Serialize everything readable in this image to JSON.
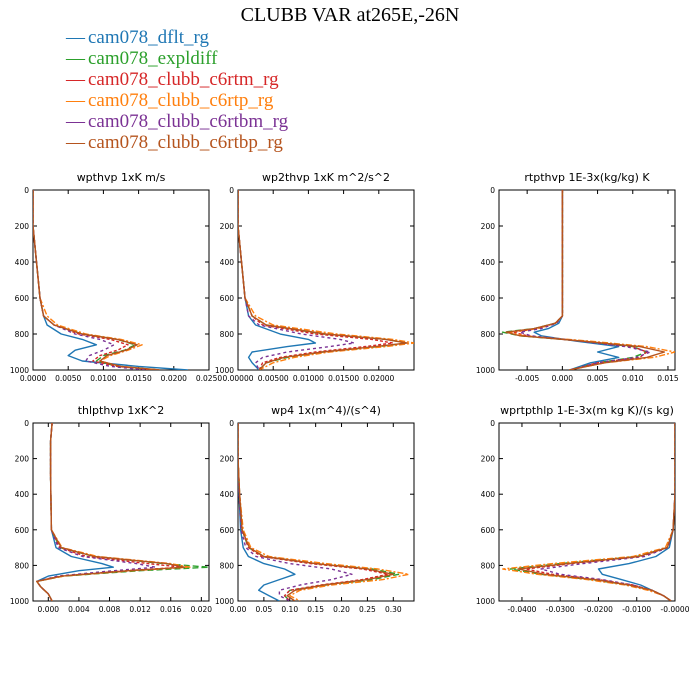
{
  "title": "CLUBB VAR at265E,-26N",
  "legend": [
    {
      "label": "cam078_dflt_rg",
      "color": "#1f77b4"
    },
    {
      "label": "cam078_expldiff",
      "color": "#2ca02c"
    },
    {
      "label": "cam078_clubb_c6rtm_rg",
      "color": "#d62728"
    },
    {
      "label": "cam078_clubb_c6rtp_rg",
      "color": "#ff7f0e"
    },
    {
      "label": "cam078_clubb_c6rtbm_rg",
      "color": "#7b3294"
    },
    {
      "label": "cam078_clubb_c6rtbp_rg",
      "color": "#b5541e"
    }
  ],
  "chart_data": [
    {
      "type": "line",
      "title": "wpthvp  1xK m/s",
      "ylim": [
        1000,
        0
      ],
      "yticks": [
        "0",
        "200",
        "400",
        "600",
        "800",
        "1000"
      ],
      "xlim": [
        0,
        0.025
      ],
      "xticks": [
        "0.0000",
        "0.0050",
        "0.0100",
        "0.0150",
        "0.0200",
        "0.0250"
      ],
      "y": [
        0,
        200,
        400,
        600,
        700,
        750,
        800,
        830,
        860,
        890,
        920,
        950,
        980,
        1000
      ],
      "series": [
        {
          "values": [
            0,
            0,
            0.0005,
            0.001,
            0.0015,
            0.002,
            0.004,
            0.007,
            0.009,
            0.006,
            0.005,
            0.007,
            0.015,
            0.022
          ]
        },
        {
          "values": [
            0,
            0,
            0.0005,
            0.001,
            0.0015,
            0.003,
            0.007,
            0.012,
            0.0145,
            0.013,
            0.01,
            0.009,
            0.012,
            0.018
          ]
        },
        {
          "values": [
            0,
            0,
            0.0005,
            0.001,
            0.0015,
            0.003,
            0.0065,
            0.011,
            0.0135,
            0.012,
            0.0095,
            0.0085,
            0.012,
            0.017
          ]
        },
        {
          "values": [
            0,
            0,
            0.0005,
            0.001,
            0.002,
            0.0035,
            0.0075,
            0.0125,
            0.0155,
            0.0135,
            0.011,
            0.0095,
            0.0125,
            0.018
          ]
        },
        {
          "values": [
            0,
            0,
            0.0005,
            0.001,
            0.0015,
            0.003,
            0.006,
            0.0095,
            0.0115,
            0.01,
            0.008,
            0.0075,
            0.011,
            0.016
          ]
        },
        {
          "values": [
            0,
            0,
            0.0005,
            0.001,
            0.0015,
            0.003,
            0.007,
            0.012,
            0.0148,
            0.0132,
            0.0105,
            0.0095,
            0.0125,
            0.018
          ]
        }
      ]
    },
    {
      "type": "line",
      "title": "wp2thvp  1xK m^2/s^2",
      "ylim": [
        1000,
        0
      ],
      "yticks": [
        "0",
        "200",
        "400",
        "600",
        "800",
        "1000"
      ],
      "xlim": [
        0,
        0.025
      ],
      "xticks": [
        "0.00000",
        "0.00500",
        "0.01000",
        "0.01500",
        "0.02000"
      ],
      "y": [
        0,
        200,
        400,
        600,
        700,
        750,
        800,
        830,
        850,
        870,
        900,
        930,
        960,
        1000
      ],
      "series": [
        {
          "values": [
            0,
            0,
            0.0005,
            0.001,
            0.0015,
            0.0025,
            0.006,
            0.01,
            0.011,
            0.007,
            0.002,
            0.0015,
            0.002,
            0.003
          ]
        },
        {
          "values": [
            0,
            0,
            0.0005,
            0.001,
            0.002,
            0.004,
            0.012,
            0.021,
            0.024,
            0.02,
            0.012,
            0.007,
            0.004,
            0.003
          ]
        },
        {
          "values": [
            0,
            0,
            0.0005,
            0.001,
            0.002,
            0.0035,
            0.011,
            0.019,
            0.022,
            0.018,
            0.011,
            0.006,
            0.0035,
            0.003
          ]
        },
        {
          "values": [
            0,
            0,
            0.0005,
            0.001,
            0.0025,
            0.005,
            0.014,
            0.022,
            0.025,
            0.021,
            0.013,
            0.008,
            0.005,
            0.003
          ]
        },
        {
          "values": [
            0,
            0,
            0.0005,
            0.001,
            0.0015,
            0.003,
            0.009,
            0.0145,
            0.0165,
            0.013,
            0.007,
            0.0035,
            0.0025,
            0.003
          ]
        },
        {
          "values": [
            0,
            0,
            0.0005,
            0.001,
            0.002,
            0.004,
            0.0125,
            0.021,
            0.024,
            0.0195,
            0.012,
            0.0065,
            0.004,
            0.003
          ]
        }
      ]
    },
    {
      "type": "line",
      "title": "rtpthvp  1E-3x(kg/kg) K",
      "ylim": [
        1000,
        0
      ],
      "yticks": [
        "0",
        "200",
        "400",
        "600",
        "800",
        "1000"
      ],
      "xlim": [
        -0.009,
        0.016
      ],
      "xticks": [
        "-0.005",
        "0.000",
        "0.005",
        "0.010",
        "0.015"
      ],
      "y": [
        0,
        200,
        400,
        600,
        700,
        740,
        770,
        790,
        810,
        840,
        870,
        900,
        930,
        960,
        1000
      ],
      "series": [
        {
          "values": [
            0,
            0,
            0,
            0,
            0,
            -0.0005,
            -0.002,
            -0.004,
            -0.003,
            0.002,
            0.008,
            0.005,
            0.008,
            0.004,
            0.001
          ]
        },
        {
          "values": [
            0,
            0,
            0,
            0,
            0,
            -0.001,
            -0.004,
            -0.0085,
            -0.006,
            0.003,
            0.01,
            0.012,
            0.01,
            0.005,
            0.001
          ]
        },
        {
          "values": [
            0,
            0,
            0,
            0,
            0,
            -0.001,
            -0.0035,
            -0.007,
            -0.005,
            0.003,
            0.01,
            0.012,
            0.011,
            0.005,
            0.001
          ]
        },
        {
          "values": [
            0,
            0,
            0,
            0,
            0,
            -0.001,
            -0.0035,
            -0.0075,
            -0.0055,
            0.004,
            0.012,
            0.016,
            0.013,
            0.006,
            0.001
          ]
        },
        {
          "values": [
            0,
            0,
            0,
            0,
            0,
            -0.0008,
            -0.003,
            -0.006,
            -0.0045,
            0.0025,
            0.009,
            0.0125,
            0.0105,
            0.005,
            0.001
          ]
        },
        {
          "values": [
            0,
            0,
            0,
            0,
            0,
            -0.001,
            -0.004,
            -0.008,
            -0.006,
            0.003,
            0.011,
            0.0145,
            0.012,
            0.006,
            0.001
          ]
        }
      ]
    },
    {
      "type": "line",
      "title": "thlpthvp  1xK^2",
      "ylim": [
        1000,
        0
      ],
      "yticks": [
        "0",
        "200",
        "400",
        "600",
        "800",
        "1000"
      ],
      "xlim": [
        -0.002,
        0.021
      ],
      "xticks": [
        "0.000",
        "0.004",
        "0.008",
        "0.012",
        "0.016",
        "0.020"
      ],
      "y": [
        0,
        100,
        300,
        600,
        700,
        750,
        790,
        810,
        830,
        860,
        890,
        920,
        960,
        1000
      ],
      "series": [
        {
          "values": [
            0.0005,
            0.0003,
            0.0003,
            0.0004,
            0.001,
            0.003,
            0.007,
            0.0085,
            0.004,
            0.0,
            -0.0015,
            -0.001,
            0.0,
            0.0005
          ]
        },
        {
          "values": [
            0.0005,
            0.0003,
            0.0003,
            0.0004,
            0.0015,
            0.006,
            0.015,
            0.021,
            0.012,
            0.002,
            -0.0015,
            -0.001,
            0.0,
            0.0005
          ]
        },
        {
          "values": [
            0.0005,
            0.0003,
            0.0003,
            0.0004,
            0.0015,
            0.005,
            0.013,
            0.0175,
            0.01,
            0.0015,
            -0.0015,
            -0.001,
            0.0,
            0.0005
          ]
        },
        {
          "values": [
            0.0005,
            0.0003,
            0.0003,
            0.0004,
            0.0018,
            0.0065,
            0.016,
            0.0185,
            0.011,
            0.002,
            -0.0015,
            -0.001,
            0.0,
            0.0005
          ]
        },
        {
          "values": [
            0.0005,
            0.0003,
            0.0003,
            0.0004,
            0.0013,
            0.0045,
            0.0115,
            0.014,
            0.0085,
            0.0012,
            -0.0015,
            -0.001,
            0.0,
            0.0005
          ]
        },
        {
          "values": [
            0.0005,
            0.0003,
            0.0003,
            0.0004,
            0.0017,
            0.006,
            0.0155,
            0.0178,
            0.0105,
            0.0018,
            -0.0015,
            -0.001,
            0.0,
            0.0005
          ]
        }
      ]
    },
    {
      "type": "line",
      "title": "wp4  1x(m^4)/(s^4)",
      "ylim": [
        1000,
        0
      ],
      "yticks": [
        "0",
        "200",
        "400",
        "600",
        "800",
        "1000"
      ],
      "xlim": [
        0,
        0.34
      ],
      "xticks": [
        "0.00",
        "0.05",
        "0.10",
        "0.15",
        "0.20",
        "0.25",
        "0.30"
      ],
      "y": [
        0,
        200,
        400,
        600,
        700,
        750,
        790,
        820,
        850,
        880,
        910,
        940,
        970,
        1000
      ],
      "series": [
        {
          "values": [
            0.0,
            0.0,
            0.002,
            0.005,
            0.01,
            0.02,
            0.05,
            0.09,
            0.11,
            0.08,
            0.05,
            0.04,
            0.06,
            0.08
          ]
        },
        {
          "values": [
            0.0,
            0.0,
            0.003,
            0.008,
            0.02,
            0.05,
            0.15,
            0.26,
            0.31,
            0.26,
            0.17,
            0.1,
            0.09,
            0.1
          ]
        },
        {
          "values": [
            0.0,
            0.0,
            0.003,
            0.008,
            0.02,
            0.045,
            0.14,
            0.24,
            0.29,
            0.24,
            0.16,
            0.1,
            0.09,
            0.1
          ]
        },
        {
          "values": [
            0.0,
            0.0,
            0.003,
            0.01,
            0.025,
            0.06,
            0.17,
            0.27,
            0.33,
            0.28,
            0.18,
            0.12,
            0.1,
            0.12
          ]
        },
        {
          "values": [
            0.0,
            0.0,
            0.002,
            0.006,
            0.015,
            0.035,
            0.1,
            0.18,
            0.22,
            0.18,
            0.12,
            0.08,
            0.08,
            0.1
          ]
        },
        {
          "values": [
            0.0,
            0.0,
            0.003,
            0.008,
            0.022,
            0.05,
            0.15,
            0.25,
            0.3,
            0.25,
            0.165,
            0.11,
            0.095,
            0.11
          ]
        }
      ]
    },
    {
      "type": "line",
      "title": "wprtpthlp  1-E-3x(m kg K)/(s kg)",
      "ylim": [
        1000,
        0
      ],
      "yticks": [
        "0",
        "200",
        "400",
        "600",
        "800",
        "1000"
      ],
      "xlim": [
        -0.046,
        0.0
      ],
      "xticks": [
        "-0.0400",
        "-0.0300",
        "-0.0200",
        "-0.0100",
        "-0.0000"
      ],
      "y": [
        0,
        200,
        400,
        600,
        700,
        750,
        790,
        820,
        850,
        880,
        910,
        940,
        970,
        1000
      ],
      "series": [
        {
          "values": [
            0,
            0,
            0,
            -0.0005,
            -0.0015,
            -0.005,
            -0.012,
            -0.02,
            -0.019,
            -0.014,
            -0.009,
            -0.006,
            -0.003,
            -0.001
          ]
        },
        {
          "values": [
            0,
            0,
            0,
            -0.0005,
            -0.002,
            -0.01,
            -0.03,
            -0.043,
            -0.035,
            -0.022,
            -0.012,
            -0.006,
            -0.003,
            -0.001
          ]
        },
        {
          "values": [
            0,
            0,
            0,
            -0.0005,
            -0.002,
            -0.009,
            -0.027,
            -0.039,
            -0.032,
            -0.02,
            -0.011,
            -0.006,
            -0.003,
            -0.001
          ]
        },
        {
          "values": [
            0,
            0,
            0,
            -0.0005,
            -0.0025,
            -0.011,
            -0.032,
            -0.045,
            -0.036,
            -0.023,
            -0.013,
            -0.007,
            -0.003,
            -0.001
          ]
        },
        {
          "values": [
            0,
            0,
            0,
            -0.0005,
            -0.0018,
            -0.008,
            -0.024,
            -0.035,
            -0.03,
            -0.019,
            -0.011,
            -0.006,
            -0.003,
            -0.001
          ]
        },
        {
          "values": [
            0,
            0,
            0,
            -0.0005,
            -0.002,
            -0.0095,
            -0.028,
            -0.041,
            -0.034,
            -0.021,
            -0.012,
            -0.006,
            -0.003,
            -0.001
          ]
        }
      ]
    }
  ]
}
